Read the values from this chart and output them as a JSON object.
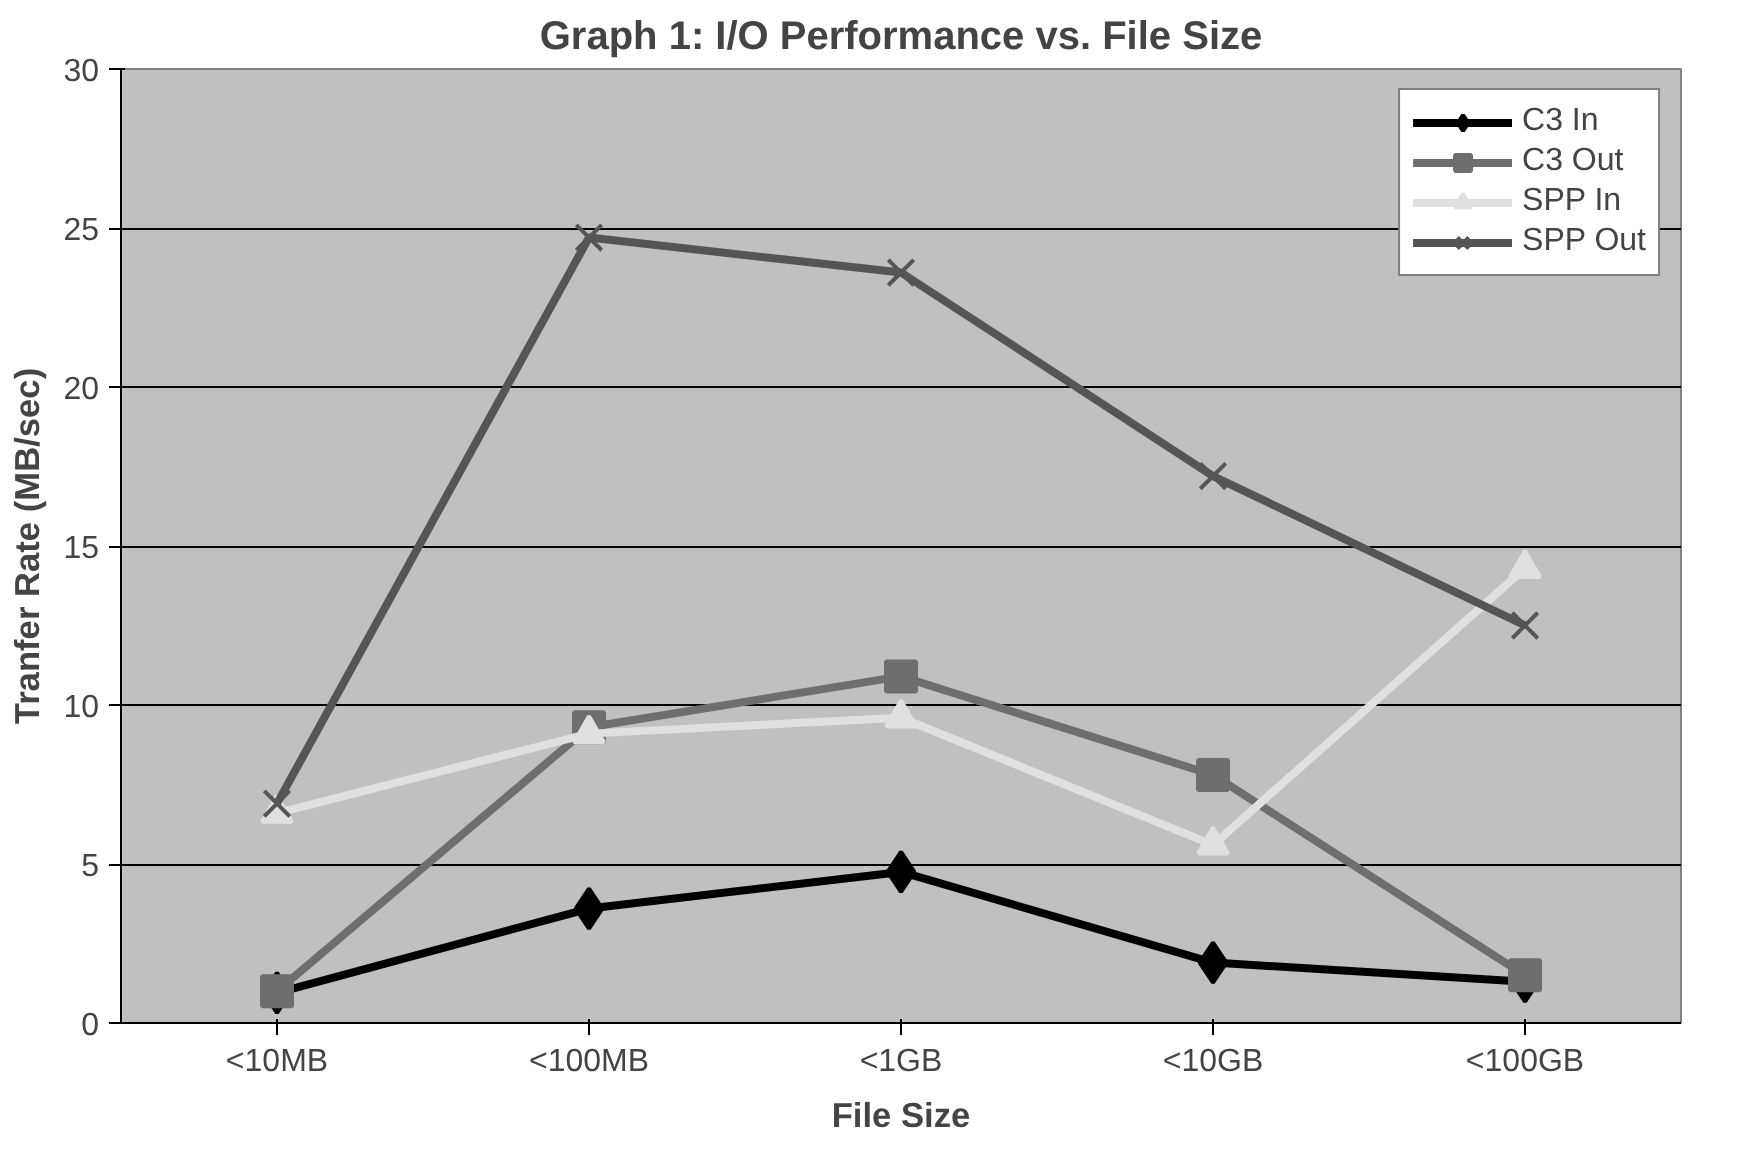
{
  "chart_data": {
    "type": "line",
    "title": "Graph 1: I/O Performance vs. File Size",
    "xlabel": "File Size",
    "ylabel": "Tranfer Rate (MB/sec)",
    "categories": [
      "<10MB",
      "<100MB",
      "<1GB",
      "<10GB",
      "<100GB"
    ],
    "series": [
      {
        "name": "C3 In",
        "color": "#000000",
        "marker": "diamond",
        "values": [
          0.95,
          3.6,
          4.75,
          1.9,
          1.3
        ]
      },
      {
        "name": "C3 Out",
        "color": "#6e6e6e",
        "marker": "square",
        "values": [
          1.0,
          9.3,
          10.9,
          7.8,
          1.5
        ]
      },
      {
        "name": "SPP In",
        "color": "#e0e0e0",
        "marker": "triangle",
        "values": [
          6.6,
          9.1,
          9.6,
          5.6,
          14.3
        ]
      },
      {
        "name": "SPP Out",
        "color": "#555555",
        "marker": "cross",
        "values": [
          6.9,
          24.7,
          23.6,
          17.2,
          12.5
        ]
      }
    ],
    "ylim": [
      0,
      30
    ],
    "yticks": [
      0,
      5,
      10,
      15,
      20,
      25,
      30
    ],
    "grid": "y",
    "legend": "top right",
    "line_style": "solid"
  }
}
